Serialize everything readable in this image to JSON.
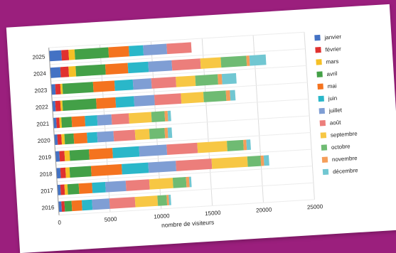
{
  "chart_data": {
    "type": "bar",
    "orientation": "horizontal",
    "stacked": true,
    "categories": [
      "2025",
      "2024",
      "2023",
      "2022",
      "2021",
      "2020",
      "2019",
      "2018",
      "2017",
      "2016"
    ],
    "xlabel": "nombre de visiteurs",
    "ylabel": "",
    "xlim": [
      0,
      25000
    ],
    "xticks": [
      0,
      5000,
      10000,
      15000,
      20000,
      25000
    ],
    "xtick_labels": [
      "0",
      "5000",
      "10000",
      "15000",
      "20000",
      "25000"
    ],
    "grid": true,
    "legend_position": "right",
    "series": [
      {
        "name": "janvier",
        "color": "#4472c4",
        "values": [
          1200,
          1000,
          400,
          300,
          300,
          300,
          400,
          400,
          300,
          300
        ]
      },
      {
        "name": "février",
        "color": "#e0312f",
        "values": [
          700,
          800,
          500,
          500,
          300,
          400,
          500,
          500,
          400,
          300
        ]
      },
      {
        "name": "mars",
        "color": "#f5c026",
        "values": [
          600,
          700,
          200,
          200,
          200,
          300,
          500,
          400,
          300,
          0
        ]
      },
      {
        "name": "avril",
        "color": "#43a047",
        "values": [
          3300,
          2900,
          3000,
          3300,
          1000,
          900,
          1900,
          2100,
          1100,
          700
        ]
      },
      {
        "name": "mai",
        "color": "#f4731f",
        "values": [
          2000,
          2200,
          2100,
          1900,
          1300,
          1300,
          2300,
          3000,
          1300,
          1000
        ]
      },
      {
        "name": "juin",
        "color": "#2ab7c9",
        "values": [
          1400,
          2000,
          1800,
          1800,
          1200,
          1000,
          2600,
          2600,
          1300,
          1000
        ]
      },
      {
        "name": "juillet",
        "color": "#7f9ed4",
        "values": [
          2300,
          2300,
          1800,
          2000,
          1400,
          1600,
          2700,
          2700,
          2000,
          1700
        ]
      },
      {
        "name": "août",
        "color": "#ec7e7b",
        "values": [
          2400,
          2800,
          2400,
          2600,
          1700,
          2100,
          3000,
          3500,
          2300,
          2500
        ]
      },
      {
        "name": "septembre",
        "color": "#f7c744",
        "values": [
          0,
          2000,
          1900,
          2200,
          2200,
          1400,
          2900,
          3500,
          2300,
          2200
        ]
      },
      {
        "name": "octobre",
        "color": "#6fbb73",
        "values": [
          0,
          2500,
          2200,
          2200,
          1300,
          1500,
          1600,
          1300,
          1300,
          900
        ]
      },
      {
        "name": "novembre",
        "color": "#f59e5a",
        "values": [
          0,
          300,
          400,
          400,
          300,
          300,
          300,
          300,
          300,
          200
        ]
      },
      {
        "name": "décembre",
        "color": "#71c7d2",
        "values": [
          0,
          1600,
          1400,
          500,
          300,
          400,
          400,
          500,
          200,
          200
        ]
      }
    ]
  }
}
